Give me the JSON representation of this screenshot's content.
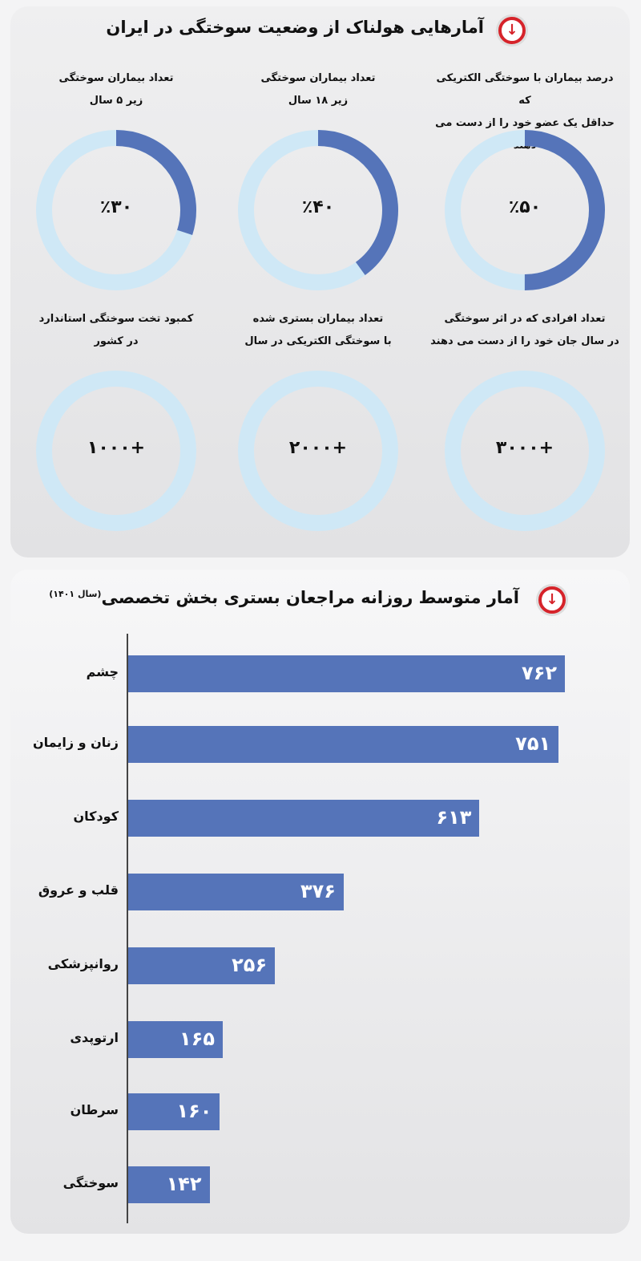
{
  "colors": {
    "fill": "#5574b9",
    "track": "#cfe8f6",
    "accent": "#d6232a"
  },
  "section1": {
    "title": "آمارهایی هولناک از وضعیت سوختگی در ایران",
    "icon": "arrow-down-circle-icon",
    "stats": [
      {
        "label1": "درصد بیماران با سوختگی الکتریکی که",
        "label2": "حداقل یک عضو خود را از دست می دهند",
        "value": "٪۵۰",
        "percent": 50
      },
      {
        "label1": "تعداد بیماران سوختگی",
        "label2": "زیر ۱۸ سال",
        "value": "٪۴۰",
        "percent": 40
      },
      {
        "label1": "تعداد بیماران سوختگی",
        "label2": "زیر ۵ سال",
        "value": "٪۳۰",
        "percent": 30
      },
      {
        "label1": "تعداد افرادی که در اثر سوختگی",
        "label2": "در سال جان خود را از دست می دهند",
        "value": "+۳۰۰۰",
        "percent": 0
      },
      {
        "label1": "تعداد بیماران بستری شده",
        "label2": "با سوختگی الکتریکی در سال",
        "value": "+۲۰۰۰",
        "percent": 0
      },
      {
        "label1": "کمبود تخت سوختگی استاندارد",
        "label2": "در کشور",
        "value": "+۱۰۰۰",
        "percent": 0
      }
    ]
  },
  "section2": {
    "title": "آمار متوسط روزانه مراجعان بستری بخش تخصصی",
    "title_note": "(سال ۱۴۰۱)",
    "icon": "arrow-down-circle-icon"
  },
  "chart_data": {
    "type": "bar",
    "orientation": "horizontal",
    "categories": [
      "چشم",
      "زنان و زایمان",
      "کودکان",
      "قلب و عروق",
      "روانپزشکی",
      "ارتوپدی",
      "سرطان",
      "سوختگی"
    ],
    "values": [
      762,
      751,
      613,
      376,
      256,
      165,
      160,
      142
    ],
    "value_labels": [
      "۷۶۲",
      "۷۵۱",
      "۶۱۳",
      "۳۷۶",
      "۲۵۶",
      "۱۶۵",
      "۱۶۰",
      "۱۴۲"
    ],
    "xlim": [
      0,
      762
    ],
    "grid": false
  }
}
